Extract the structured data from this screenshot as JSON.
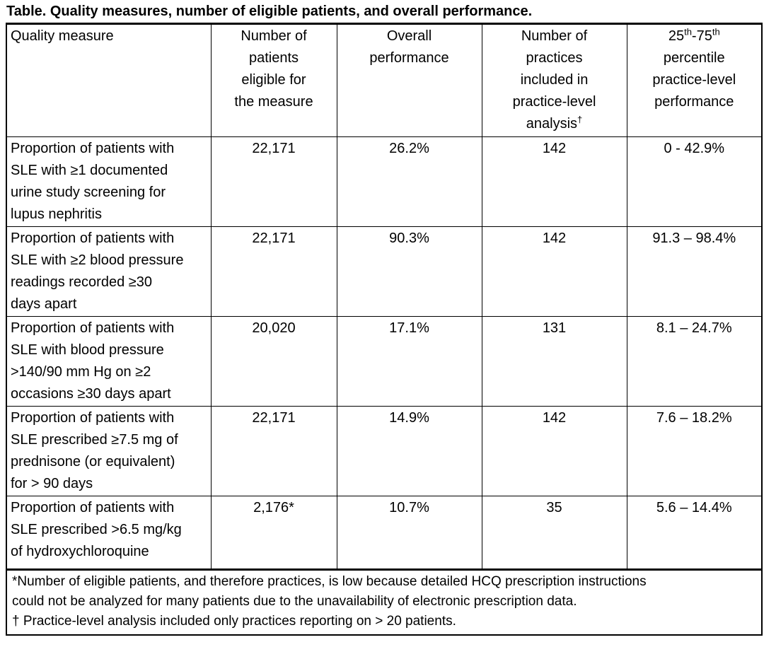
{
  "title": "Table. Quality measures, number of eligible patients, and overall performance.",
  "headers": {
    "quality_measure": "Quality measure",
    "patients": "Number of\npatients\neligible for\nthe measure",
    "performance": "Overall\nperformance",
    "practices_main": "Number of\npractices\nincluded in\npractice-level\nanalysis",
    "practices_marker": "†",
    "percentile": {
      "base1": "25",
      "sup1": "th",
      "base2": "-75",
      "sup2": "th",
      "rest": "percentile\npractice-level\nperformance"
    }
  },
  "rows": [
    {
      "measure": "Proportion of patients with\nSLE with ≥1 documented\nurine study screening for\nlupus nephritis",
      "patients": "22,171",
      "performance": "26.2%",
      "practices": "142",
      "percentile": "0 - 42.9%"
    },
    {
      "measure": "Proportion of patients with\nSLE with ≥2 blood pressure\nreadings recorded ≥30\ndays apart",
      "patients": "22,171",
      "performance": "90.3%",
      "practices": "142",
      "percentile": "91.3 – 98.4%"
    },
    {
      "measure": "Proportion of patients with\nSLE with blood pressure\n>140/90 mm Hg on ≥2\noccasions ≥30 days apart",
      "patients": "20,020",
      "performance": "17.1%",
      "practices": "131",
      "percentile": "8.1 – 24.7%"
    },
    {
      "measure": "Proportion of patients with\nSLE prescribed ≥7.5 mg of\nprednisone (or equivalent)\nfor > 90 days",
      "patients": "22,171",
      "performance": "14.9%",
      "practices": "142",
      "percentile": "7.6 – 18.2%"
    },
    {
      "measure": "Proportion of patients with\nSLE prescribed >6.5 mg/kg\nof hydroxychloroquine",
      "patients": "2,176*",
      "performance": "10.7%",
      "practices": "35",
      "percentile": "5.6 – 14.4%"
    }
  ],
  "footnotes": {
    "asterisk": "*Number of eligible patients, and therefore practices, is low because detailed HCQ prescription instructions\ncould not be analyzed for many patients due to the unavailability of electronic prescription data.",
    "dagger": "† Practice-level analysis included only practices reporting on > 20 patients."
  },
  "colors": {
    "text": "#000000",
    "background": "#ffffff",
    "border": "#000000"
  }
}
